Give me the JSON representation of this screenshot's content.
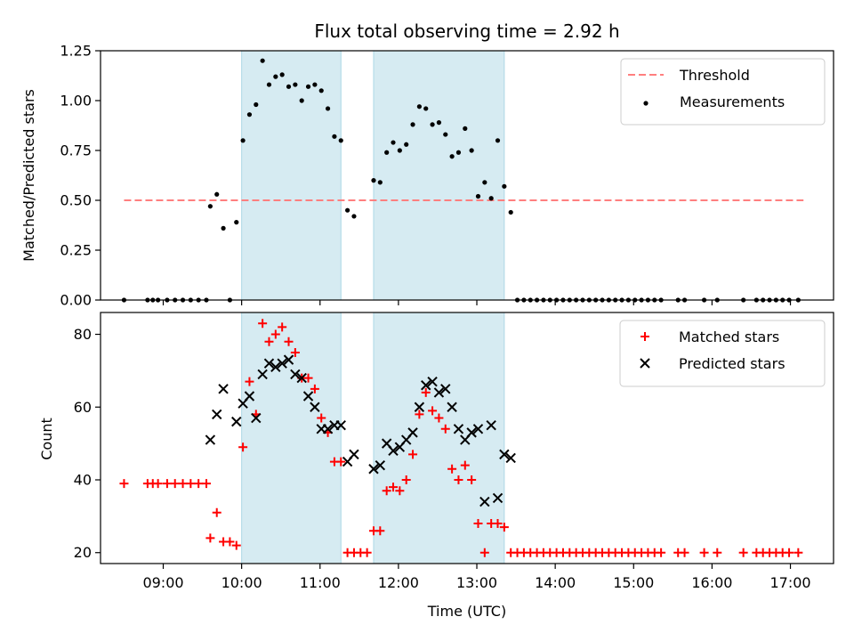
{
  "chart_data": [
    {
      "type": "scatter",
      "title": "Flux total observing time = 2.92 h",
      "xlabel": "",
      "ylabel": "Matched/Predicted stars",
      "xlim": [
        "08:12",
        "17:33"
      ],
      "ylim": [
        0,
        1.25
      ],
      "yticks": [
        "0.00",
        "0.25",
        "0.50",
        "0.75",
        "1.00",
        "1.25"
      ],
      "grid": false,
      "legend_position": "top-right",
      "shaded_intervals": [
        [
          "10:00",
          "11:16"
        ],
        [
          "11:41",
          "13:21"
        ]
      ],
      "threshold": {
        "name": "Threshold",
        "value": 0.5,
        "x_range": [
          "08:30",
          "17:10"
        ],
        "color": "#ff7f7f"
      },
      "series": [
        {
          "name": "Measurements",
          "marker": "dot",
          "color": "#000000",
          "points": [
            [
              "08:30",
              0
            ],
            [
              "08:48",
              0
            ],
            [
              "08:52",
              0
            ],
            [
              "08:56",
              0
            ],
            [
              "09:03",
              0
            ],
            [
              "09:09",
              0
            ],
            [
              "09:15",
              0
            ],
            [
              "09:21",
              0
            ],
            [
              "09:27",
              0
            ],
            [
              "09:33",
              0
            ],
            [
              "09:36",
              0.47
            ],
            [
              "09:41",
              0.53
            ],
            [
              "09:46",
              0.36
            ],
            [
              "09:51",
              0
            ],
            [
              "09:56",
              0.39
            ],
            [
              "10:01",
              0.8
            ],
            [
              "10:06",
              0.93
            ],
            [
              "10:11",
              0.98
            ],
            [
              "10:16",
              1.2
            ],
            [
              "10:21",
              1.08
            ],
            [
              "10:26",
              1.12
            ],
            [
              "10:31",
              1.13
            ],
            [
              "10:36",
              1.07
            ],
            [
              "10:41",
              1.08
            ],
            [
              "10:46",
              1.0
            ],
            [
              "10:51",
              1.07
            ],
            [
              "10:56",
              1.08
            ],
            [
              "11:01",
              1.05
            ],
            [
              "11:06",
              0.96
            ],
            [
              "11:11",
              0.82
            ],
            [
              "11:16",
              0.8
            ],
            [
              "11:21",
              0.45
            ],
            [
              "11:26",
              0.42
            ],
            [
              "11:41",
              0.6
            ],
            [
              "11:46",
              0.59
            ],
            [
              "11:51",
              0.74
            ],
            [
              "11:56",
              0.79
            ],
            [
              "12:01",
              0.75
            ],
            [
              "12:06",
              0.78
            ],
            [
              "12:11",
              0.88
            ],
            [
              "12:16",
              0.97
            ],
            [
              "12:21",
              0.96
            ],
            [
              "12:26",
              0.88
            ],
            [
              "12:31",
              0.89
            ],
            [
              "12:36",
              0.83
            ],
            [
              "12:41",
              0.72
            ],
            [
              "12:46",
              0.74
            ],
            [
              "12:51",
              0.86
            ],
            [
              "12:56",
              0.75
            ],
            [
              "13:01",
              0.52
            ],
            [
              "13:06",
              0.59
            ],
            [
              "13:11",
              0.51
            ],
            [
              "13:16",
              0.8
            ],
            [
              "13:21",
              0.57
            ],
            [
              "13:26",
              0.44
            ],
            [
              "13:31",
              0
            ],
            [
              "13:36",
              0
            ],
            [
              "13:41",
              0
            ],
            [
              "13:46",
              0
            ],
            [
              "13:51",
              0
            ],
            [
              "13:56",
              0
            ],
            [
              "14:01",
              0
            ],
            [
              "14:06",
              0
            ],
            [
              "14:11",
              0
            ],
            [
              "14:16",
              0
            ],
            [
              "14:21",
              0
            ],
            [
              "14:26",
              0
            ],
            [
              "14:31",
              0
            ],
            [
              "14:36",
              0
            ],
            [
              "14:41",
              0
            ],
            [
              "14:46",
              0
            ],
            [
              "14:51",
              0
            ],
            [
              "14:56",
              0
            ],
            [
              "15:01",
              0
            ],
            [
              "15:06",
              0
            ],
            [
              "15:11",
              0
            ],
            [
              "15:16",
              0
            ],
            [
              "15:21",
              0
            ],
            [
              "15:34",
              0
            ],
            [
              "15:39",
              0
            ],
            [
              "15:54",
              0
            ],
            [
              "16:04",
              0
            ],
            [
              "16:24",
              0
            ],
            [
              "16:34",
              0
            ],
            [
              "16:39",
              0
            ],
            [
              "16:44",
              0
            ],
            [
              "16:49",
              0
            ],
            [
              "16:54",
              0
            ],
            [
              "16:59",
              0
            ],
            [
              "17:06",
              0
            ]
          ]
        }
      ]
    },
    {
      "type": "scatter",
      "title": "",
      "xlabel": "Time (UTC)",
      "ylabel": "Count",
      "xlim": [
        "08:12",
        "17:33"
      ],
      "ylim": [
        17,
        86
      ],
      "yticks": [
        "20",
        "40",
        "60",
        "80"
      ],
      "xticks": [
        "09:00",
        "10:00",
        "11:00",
        "12:00",
        "13:00",
        "14:00",
        "15:00",
        "16:00",
        "17:00"
      ],
      "grid": false,
      "legend_position": "top-right",
      "shaded_intervals": [
        [
          "10:00",
          "11:16"
        ],
        [
          "11:41",
          "13:21"
        ]
      ],
      "series": [
        {
          "name": "Matched stars",
          "marker": "plus",
          "color": "#ff0000",
          "points": [
            [
              "08:30",
              39
            ],
            [
              "08:48",
              39
            ],
            [
              "08:52",
              39
            ],
            [
              "08:56",
              39
            ],
            [
              "09:03",
              39
            ],
            [
              "09:09",
              39
            ],
            [
              "09:15",
              39
            ],
            [
              "09:21",
              39
            ],
            [
              "09:27",
              39
            ],
            [
              "09:33",
              39
            ],
            [
              "09:36",
              24
            ],
            [
              "09:41",
              31
            ],
            [
              "09:46",
              23
            ],
            [
              "09:51",
              23
            ],
            [
              "09:56",
              22
            ],
            [
              "10:01",
              49
            ],
            [
              "10:06",
              67
            ],
            [
              "10:11",
              58
            ],
            [
              "10:16",
              83
            ],
            [
              "10:21",
              78
            ],
            [
              "10:26",
              80
            ],
            [
              "10:31",
              82
            ],
            [
              "10:36",
              78
            ],
            [
              "10:41",
              75
            ],
            [
              "10:46",
              68
            ],
            [
              "10:51",
              68
            ],
            [
              "10:56",
              65
            ],
            [
              "11:01",
              57
            ],
            [
              "11:06",
              53
            ],
            [
              "11:11",
              45
            ],
            [
              "11:16",
              45
            ],
            [
              "11:21",
              20
            ],
            [
              "11:26",
              20
            ],
            [
              "11:31",
              20
            ],
            [
              "11:36",
              20
            ],
            [
              "11:41",
              26
            ],
            [
              "11:46",
              26
            ],
            [
              "11:51",
              37
            ],
            [
              "11:56",
              38
            ],
            [
              "12:01",
              37
            ],
            [
              "12:06",
              40
            ],
            [
              "12:11",
              47
            ],
            [
              "12:16",
              58
            ],
            [
              "12:21",
              64
            ],
            [
              "12:26",
              59
            ],
            [
              "12:31",
              57
            ],
            [
              "12:36",
              54
            ],
            [
              "12:41",
              43
            ],
            [
              "12:46",
              40
            ],
            [
              "12:51",
              44
            ],
            [
              "12:56",
              40
            ],
            [
              "13:01",
              28
            ],
            [
              "13:06",
              20
            ],
            [
              "13:11",
              28
            ],
            [
              "13:16",
              28
            ],
            [
              "13:21",
              27
            ],
            [
              "13:26",
              20
            ],
            [
              "13:31",
              20
            ],
            [
              "13:36",
              20
            ],
            [
              "13:41",
              20
            ],
            [
              "13:46",
              20
            ],
            [
              "13:51",
              20
            ],
            [
              "13:56",
              20
            ],
            [
              "14:01",
              20
            ],
            [
              "14:06",
              20
            ],
            [
              "14:11",
              20
            ],
            [
              "14:16",
              20
            ],
            [
              "14:21",
              20
            ],
            [
              "14:26",
              20
            ],
            [
              "14:31",
              20
            ],
            [
              "14:36",
              20
            ],
            [
              "14:41",
              20
            ],
            [
              "14:46",
              20
            ],
            [
              "14:51",
              20
            ],
            [
              "14:56",
              20
            ],
            [
              "15:01",
              20
            ],
            [
              "15:06",
              20
            ],
            [
              "15:11",
              20
            ],
            [
              "15:16",
              20
            ],
            [
              "15:21",
              20
            ],
            [
              "15:34",
              20
            ],
            [
              "15:39",
              20
            ],
            [
              "15:54",
              20
            ],
            [
              "16:04",
              20
            ],
            [
              "16:24",
              20
            ],
            [
              "16:34",
              20
            ],
            [
              "16:39",
              20
            ],
            [
              "16:44",
              20
            ],
            [
              "16:49",
              20
            ],
            [
              "16:54",
              20
            ],
            [
              "16:59",
              20
            ],
            [
              "17:06",
              20
            ]
          ]
        },
        {
          "name": "Predicted stars",
          "marker": "x",
          "color": "#000000",
          "points": [
            [
              "09:36",
              51
            ],
            [
              "09:41",
              58
            ],
            [
              "09:46",
              65
            ],
            [
              "09:56",
              56
            ],
            [
              "10:01",
              61
            ],
            [
              "10:06",
              63
            ],
            [
              "10:11",
              57
            ],
            [
              "10:16",
              69
            ],
            [
              "10:21",
              72
            ],
            [
              "10:26",
              71
            ],
            [
              "10:31",
              72
            ],
            [
              "10:36",
              73
            ],
            [
              "10:41",
              69
            ],
            [
              "10:46",
              68
            ],
            [
              "10:51",
              63
            ],
            [
              "10:56",
              60
            ],
            [
              "11:01",
              54
            ],
            [
              "11:06",
              54
            ],
            [
              "11:11",
              55
            ],
            [
              "11:16",
              55
            ],
            [
              "11:21",
              45
            ],
            [
              "11:26",
              47
            ],
            [
              "11:41",
              43
            ],
            [
              "11:46",
              44
            ],
            [
              "11:51",
              50
            ],
            [
              "11:56",
              48
            ],
            [
              "12:01",
              49
            ],
            [
              "12:06",
              51
            ],
            [
              "12:11",
              53
            ],
            [
              "12:16",
              60
            ],
            [
              "12:21",
              66
            ],
            [
              "12:26",
              67
            ],
            [
              "12:31",
              64
            ],
            [
              "12:36",
              65
            ],
            [
              "12:41",
              60
            ],
            [
              "12:46",
              54
            ],
            [
              "12:51",
              51
            ],
            [
              "12:56",
              53
            ],
            [
              "13:01",
              54
            ],
            [
              "13:06",
              34
            ],
            [
              "13:11",
              55
            ],
            [
              "13:16",
              35
            ],
            [
              "13:21",
              47
            ],
            [
              "13:26",
              46
            ]
          ]
        }
      ]
    }
  ]
}
